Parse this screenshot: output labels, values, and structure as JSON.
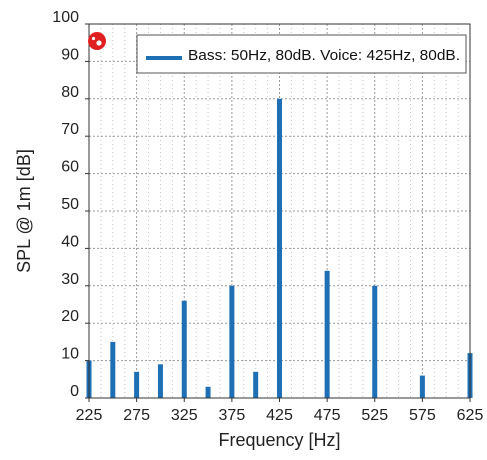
{
  "chart_data": {
    "type": "bar",
    "xlabel": "Frequency [Hz]",
    "ylabel": "SPL @ 1m [dB]",
    "xlim": [
      225,
      625
    ],
    "ylim": [
      0,
      100
    ],
    "grid": true,
    "legend_position": "top",
    "x_ticks": [
      "225",
      "275",
      "325",
      "375",
      "425",
      "475",
      "525",
      "575",
      "625"
    ],
    "y_ticks": [
      "0",
      "10",
      "20",
      "30",
      "40",
      "50",
      "60",
      "70",
      "80",
      "90",
      "100"
    ],
    "series": [
      {
        "name": "Bass: 50Hz, 80dB. Voice: 425Hz, 80dB.",
        "color": "#1f6fb5",
        "x": [
          225,
          250,
          275,
          300,
          325,
          350,
          375,
          400,
          425,
          475,
          525,
          575,
          625
        ],
        "y": [
          10,
          15,
          7,
          9,
          26,
          3,
          30,
          7,
          80,
          34,
          30,
          6,
          12
        ]
      }
    ],
    "marker_icon": "red-circle-badge-icon",
    "marker_color": "#e02020"
  }
}
